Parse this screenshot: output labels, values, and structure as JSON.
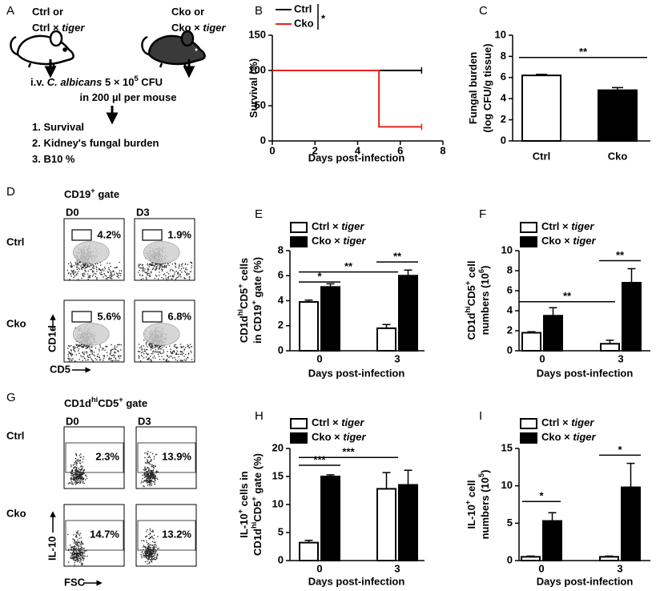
{
  "panels": {
    "letters": [
      "A",
      "B",
      "C",
      "D",
      "E",
      "F",
      "G",
      "H",
      "I"
    ],
    "a": {
      "ctrl": [
        [
          "Ctrl or"
        ],
        [
          "Ctrl × ",
          {
            "i": "tiger"
          }
        ]
      ],
      "cko": [
        [
          "Cko or"
        ],
        [
          "Cko × ",
          {
            "i": "tiger"
          }
        ]
      ],
      "injection": [
        [
          "i.v. ",
          {
            "i": "C. albicans"
          },
          " 5 × 10",
          {
            "sup": "5"
          },
          " CFU"
        ],
        [
          "in 200 µl per mouse"
        ]
      ],
      "readouts": [
        [
          "1. Survival"
        ],
        [
          "2. Kidney's fungal burden"
        ],
        [
          "3. B10 %"
        ]
      ]
    },
    "d": {
      "title": [
        "CD19",
        {
          "sup": "+"
        },
        " gate"
      ],
      "columns": [
        "D0",
        "D3"
      ],
      "rows": [
        "Ctrl",
        "Cko"
      ],
      "percentages": [
        [
          "4.2%",
          "1.9%"
        ],
        [
          "5.6%",
          "6.8%"
        ]
      ],
      "y_axis": "CD1d",
      "x_axis": "CD5"
    },
    "g": {
      "title": [
        "CD1d",
        {
          "sup": "hi"
        },
        "CD5",
        {
          "sup": "+"
        },
        " gate"
      ],
      "columns": [
        "D0",
        "D3"
      ],
      "rows": [
        "Ctrl",
        "Cko"
      ],
      "percentages": [
        [
          "2.3%",
          "13.9%"
        ],
        [
          "14.7%",
          "13.2%"
        ]
      ],
      "y_axis": "IL-10",
      "x_axis": "FSC"
    }
  },
  "chart_data": [
    {
      "type": "line",
      "ylabel": [
        [
          "Survival (%)"
        ]
      ],
      "xlabel": "Days post-infection",
      "xlim": [
        0,
        8
      ],
      "xticks": [
        0,
        2,
        4,
        6,
        8
      ],
      "ylim": [
        0,
        150
      ],
      "yticks": [
        0,
        50,
        100,
        150
      ],
      "series": [
        {
          "name": "Ctrl",
          "color": "#000000",
          "x": [
            0,
            7
          ],
          "values": [
            100,
            100
          ]
        },
        {
          "name": "Cko",
          "color": "#e8231c",
          "x": [
            0,
            5,
            5,
            7
          ],
          "values": [
            100,
            100,
            20,
            20
          ]
        }
      ],
      "annotations": [
        "*"
      ]
    },
    {
      "type": "bar",
      "ylabel": [
        [
          "Fungal burden"
        ],
        [
          "(log CFU/g tissue)"
        ]
      ],
      "categories": [
        "Ctrl",
        "Cko"
      ],
      "values": [
        6.2,
        4.8
      ],
      "errors": [
        0.1,
        0.25
      ],
      "colors": [
        "#ffffff",
        "#000000"
      ],
      "ylim": [
        0,
        10
      ],
      "yticks": [
        0,
        2,
        4,
        6,
        8,
        10
      ],
      "annotations": [
        "**"
      ]
    },
    {
      "type": "grouped-bar",
      "ylabel": [
        [
          "CD1d",
          {
            "sup": "hi"
          },
          "CD5",
          {
            "sup": "+"
          },
          " cells"
        ],
        [
          "in CD19",
          {
            "sup": "+"
          },
          " gate (%)"
        ]
      ],
      "xlabel": "Days post-infection",
      "categories": [
        "0",
        "3"
      ],
      "series": [
        {
          "name": [
            "Ctrl × ",
            {
              "i": "tiger"
            }
          ],
          "color": "#ffffff",
          "values": [
            3.9,
            1.8
          ],
          "errors": [
            0.15,
            0.3
          ]
        },
        {
          "name": [
            "Cko × ",
            {
              "i": "tiger"
            }
          ],
          "color": "#000000",
          "values": [
            5.1,
            6.0
          ],
          "errors": [
            0.25,
            0.45
          ]
        }
      ],
      "ylim": [
        0,
        8
      ],
      "yticks": [
        0,
        2,
        4,
        6,
        8
      ],
      "annotations": [
        "*",
        "**",
        "**"
      ]
    },
    {
      "type": "grouped-bar",
      "ylabel": [
        [
          "CD1d",
          {
            "sup": "hi"
          },
          "CD5",
          {
            "sup": "+"
          },
          " cell"
        ],
        [
          "numbers (10",
          {
            "sup": "6"
          },
          ")"
        ]
      ],
      "xlabel": "Days post-infection",
      "categories": [
        "0",
        "3"
      ],
      "series": [
        {
          "name": [
            "Ctrl × ",
            {
              "i": "tiger"
            }
          ],
          "color": "#ffffff",
          "values": [
            1.8,
            0.7
          ],
          "errors": [
            0.1,
            0.35
          ]
        },
        {
          "name": [
            "Cko × ",
            {
              "i": "tiger"
            }
          ],
          "color": "#000000",
          "values": [
            3.5,
            6.8
          ],
          "errors": [
            0.8,
            1.4
          ]
        }
      ],
      "ylim": [
        0,
        10
      ],
      "yticks": [
        0,
        2,
        4,
        6,
        8,
        10
      ],
      "annotations": [
        "**",
        "**"
      ]
    },
    {
      "type": "grouped-bar",
      "ylabel": [
        [
          "IL-10",
          {
            "sup": "+"
          },
          " cells in"
        ],
        [
          "CD1d",
          {
            "sup": "hi"
          },
          "CD5",
          {
            "sup": "+"
          },
          " gate (%)"
        ]
      ],
      "xlabel": "Days post-infection",
      "categories": [
        "0",
        "3"
      ],
      "series": [
        {
          "name": [
            "Ctrl × ",
            {
              "i": "tiger"
            }
          ],
          "color": "#ffffff",
          "values": [
            3.2,
            12.8
          ],
          "errors": [
            0.4,
            2.9
          ]
        },
        {
          "name": [
            "Cko × ",
            {
              "i": "tiger"
            }
          ],
          "color": "#000000",
          "values": [
            15.0,
            13.5
          ],
          "errors": [
            0.3,
            2.6
          ]
        }
      ],
      "ylim": [
        0,
        20
      ],
      "yticks": [
        0,
        5,
        10,
        15,
        20
      ],
      "annotations": [
        "***",
        "***"
      ]
    },
    {
      "type": "grouped-bar",
      "ylabel": [
        [
          "IL-10",
          {
            "sup": "+"
          },
          " cell"
        ],
        [
          "numbers (10",
          {
            "sup": "5"
          },
          ")"
        ]
      ],
      "xlabel": "Days post-infection",
      "categories": [
        "0",
        "3"
      ],
      "series": [
        {
          "name": [
            "Ctrl × ",
            {
              "i": "tiger"
            }
          ],
          "color": "#ffffff",
          "values": [
            0.5,
            0.5
          ],
          "errors": [
            0.1,
            0.1
          ]
        },
        {
          "name": [
            "Cko × ",
            {
              "i": "tiger"
            }
          ],
          "color": "#000000",
          "values": [
            5.3,
            9.8
          ],
          "errors": [
            1.1,
            3.2
          ]
        }
      ],
      "ylim": [
        0,
        15
      ],
      "yticks": [
        0,
        5,
        10,
        15
      ],
      "annotations": [
        "*",
        "*"
      ]
    }
  ]
}
